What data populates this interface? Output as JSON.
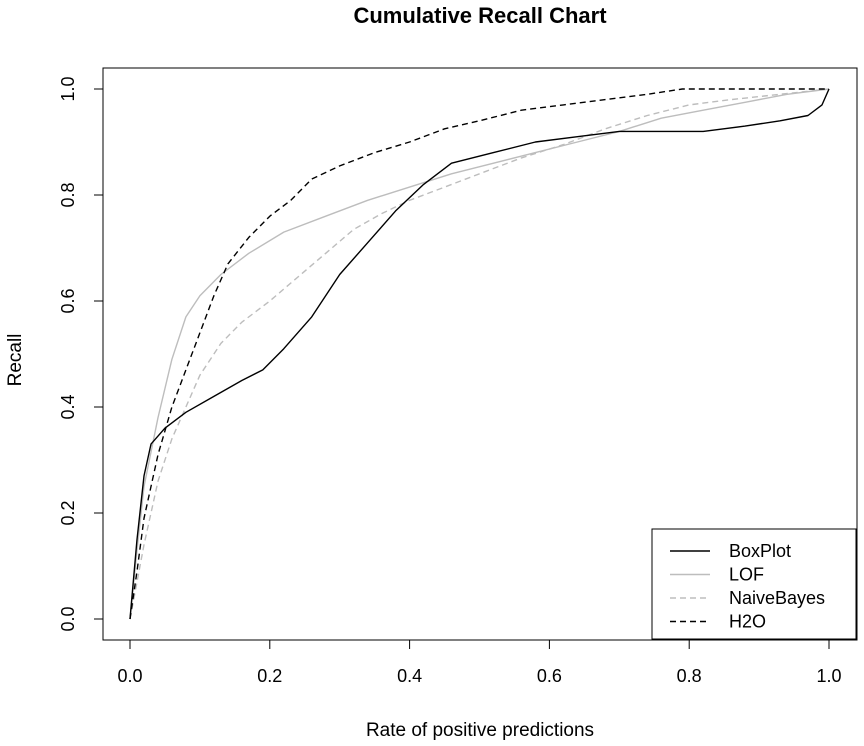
{
  "chart_data": {
    "type": "line",
    "title": "Cumulative Recall Chart",
    "xlabel": "Rate of positive predictions",
    "ylabel": "Recall",
    "xlim": [
      0,
      1
    ],
    "ylim": [
      0,
      1
    ],
    "xticks": [
      "0.0",
      "0.2",
      "0.4",
      "0.6",
      "0.8",
      "1.0"
    ],
    "yticks": [
      "0.0",
      "0.2",
      "0.4",
      "0.6",
      "0.8",
      "1.0"
    ],
    "grid": false,
    "legend_position": "bottom-right",
    "series": [
      {
        "name": "BoxPlot",
        "color": "#000000",
        "dash": "solid",
        "x": [
          0,
          0.01,
          0.02,
          0.03,
          0.05,
          0.08,
          0.12,
          0.16,
          0.19,
          0.22,
          0.26,
          0.3,
          0.34,
          0.38,
          0.42,
          0.46,
          0.52,
          0.58,
          0.64,
          0.7,
          0.76,
          0.82,
          0.88,
          0.93,
          0.97,
          0.99,
          1.0
        ],
        "y": [
          0,
          0.15,
          0.27,
          0.33,
          0.36,
          0.39,
          0.42,
          0.45,
          0.47,
          0.51,
          0.57,
          0.65,
          0.71,
          0.77,
          0.82,
          0.86,
          0.88,
          0.9,
          0.91,
          0.92,
          0.92,
          0.92,
          0.93,
          0.94,
          0.95,
          0.97,
          1.0
        ]
      },
      {
        "name": "LOF",
        "color": "#bdbdbd",
        "dash": "solid",
        "x": [
          0,
          0.01,
          0.02,
          0.04,
          0.06,
          0.08,
          0.1,
          0.13,
          0.17,
          0.22,
          0.28,
          0.34,
          0.4,
          0.46,
          0.52,
          0.58,
          0.64,
          0.7,
          0.76,
          0.82,
          0.88,
          0.94,
          1.0
        ],
        "y": [
          0,
          0.13,
          0.25,
          0.38,
          0.49,
          0.57,
          0.61,
          0.65,
          0.69,
          0.73,
          0.76,
          0.79,
          0.815,
          0.84,
          0.86,
          0.88,
          0.9,
          0.92,
          0.945,
          0.96,
          0.975,
          0.99,
          1.0
        ]
      },
      {
        "name": "NaiveBayes",
        "color": "#bdbdbd",
        "dash": "dashed",
        "x": [
          0,
          0.02,
          0.04,
          0.06,
          0.08,
          0.1,
          0.13,
          0.16,
          0.2,
          0.24,
          0.28,
          0.32,
          0.36,
          0.4,
          0.45,
          0.5,
          0.56,
          0.62,
          0.68,
          0.74,
          0.8,
          0.86,
          0.93,
          1.0
        ],
        "y": [
          0,
          0.14,
          0.26,
          0.34,
          0.4,
          0.46,
          0.52,
          0.56,
          0.6,
          0.645,
          0.69,
          0.735,
          0.765,
          0.79,
          0.815,
          0.84,
          0.87,
          0.895,
          0.925,
          0.95,
          0.97,
          0.98,
          0.99,
          1.0
        ]
      },
      {
        "name": "H2O",
        "color": "#000000",
        "dash": "dashed",
        "x": [
          0,
          0.01,
          0.02,
          0.04,
          0.06,
          0.08,
          0.1,
          0.12,
          0.14,
          0.17,
          0.2,
          0.23,
          0.26,
          0.3,
          0.35,
          0.4,
          0.45,
          0.5,
          0.56,
          0.62,
          0.68,
          0.74,
          0.79,
          0.85,
          0.92,
          1.0
        ],
        "y": [
          0,
          0.09,
          0.19,
          0.31,
          0.4,
          0.47,
          0.54,
          0.61,
          0.67,
          0.72,
          0.76,
          0.79,
          0.83,
          0.855,
          0.88,
          0.9,
          0.925,
          0.94,
          0.96,
          0.97,
          0.98,
          0.99,
          1.0,
          1.0,
          1.0,
          1.0
        ]
      }
    ]
  }
}
